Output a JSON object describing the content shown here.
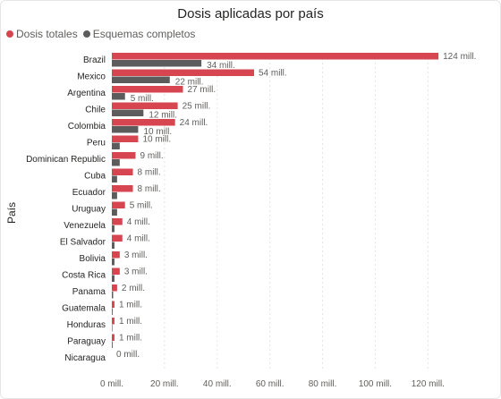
{
  "chart_data": {
    "type": "bar",
    "orientation": "horizontal",
    "title": "Dosis aplicadas por país",
    "ylabel": "País",
    "xlabel": "",
    "categories": [
      "Brazil",
      "Mexico",
      "Argentina",
      "Chile",
      "Colombia",
      "Peru",
      "Dominican Republic",
      "Cuba",
      "Ecuador",
      "Uruguay",
      "Venezuela",
      "El Salvador",
      "Bolivia",
      "Costa Rica",
      "Panama",
      "Guatemala",
      "Honduras",
      "Paraguay",
      "Nicaragua"
    ],
    "series": [
      {
        "name": "Dosis totales",
        "color": "#d64550",
        "values": [
          124,
          54,
          27,
          25,
          24,
          10,
          9,
          8,
          8,
          5,
          4,
          4,
          3,
          3,
          2,
          1,
          1,
          1,
          0
        ],
        "labels": [
          "124 mill.",
          "54 mill.",
          "27 mill.",
          "25 mill.",
          "24 mill.",
          "10 mill.",
          "9 mill.",
          "8 mill.",
          "8 mill.",
          "5 mill.",
          "4 mill.",
          "4 mill.",
          "3 mill.",
          "3 mill.",
          "2 mill.",
          "1 mill.",
          "1 mill.",
          "1 mill.",
          "0 mill."
        ]
      },
      {
        "name": "Esquemas completos",
        "color": "#5c5c5c",
        "values": [
          34,
          22,
          5,
          12,
          10,
          3,
          3,
          2,
          2,
          2,
          1,
          1,
          1,
          1,
          0.5,
          0.3,
          0.2,
          0.3,
          0
        ],
        "labels": [
          "34 mill.",
          "22 mill.",
          "5 mill.",
          "12 mill.",
          "10 mill.",
          "",
          "",
          "",
          "",
          "",
          "",
          "",
          "",
          "",
          "",
          "",
          "",
          "",
          ""
        ]
      }
    ],
    "xticks": [
      0,
      20,
      40,
      60,
      80,
      100,
      120
    ],
    "xtick_labels": [
      "0 mill.",
      "20 mill.",
      "40 mill.",
      "60 mill.",
      "80 mill.",
      "100 mill.",
      "120 mill."
    ],
    "xlim": [
      0,
      126
    ],
    "grid": true,
    "legend_position": "top-left"
  }
}
